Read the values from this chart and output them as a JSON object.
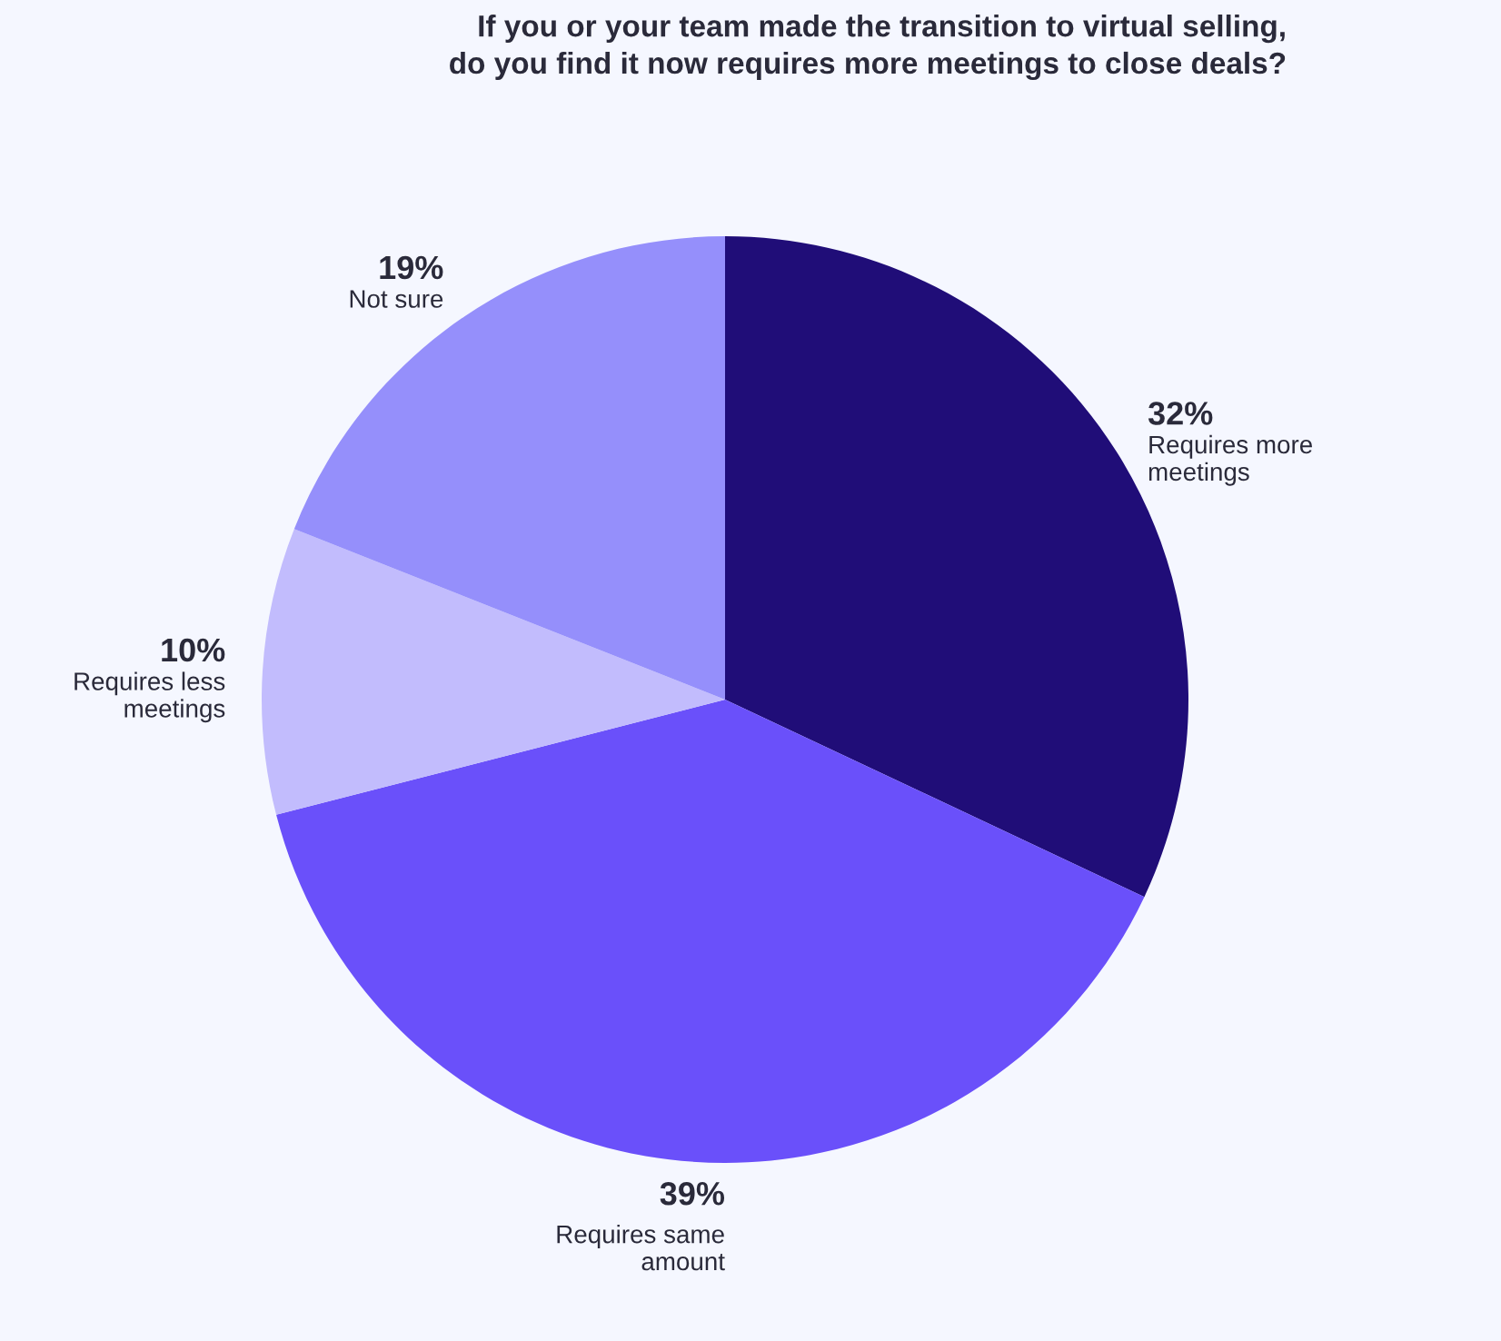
{
  "chart_data": {
    "type": "pie",
    "title": "If you or your team made the transition to virtual selling,\ndo you find it now requires more meetings to close deals?",
    "categories": [
      "Requires more\nmeetings",
      "Requires same\namount",
      "Requires less\nmeetings",
      "Not sure"
    ],
    "values": [
      32,
      39,
      10,
      19
    ],
    "colors": [
      "#200d78",
      "#6a50fa",
      "#c2bcfd",
      "#958ffb"
    ],
    "value_labels": [
      "32%",
      "39%",
      "10%",
      "19%"
    ]
  }
}
